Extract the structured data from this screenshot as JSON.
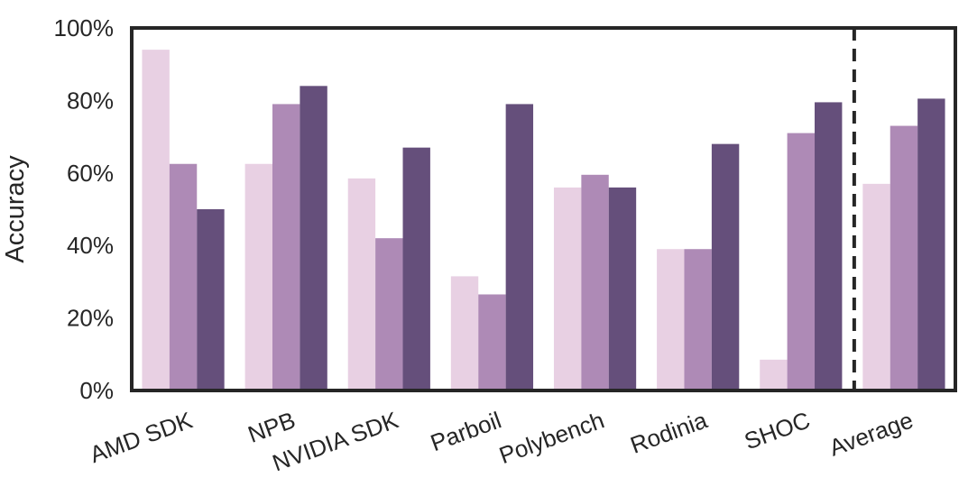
{
  "chart_data": {
    "type": "bar",
    "title": "",
    "xlabel": "",
    "ylabel": "Accuracy",
    "ylim": [
      0,
      100
    ],
    "yticks": [
      "0%",
      "20%",
      "40%",
      "60%",
      "80%",
      "100%"
    ],
    "categories": [
      "AMD SDK",
      "NPB",
      "NVIDIA SDK",
      "Parboil",
      "Polybench",
      "Rodinia",
      "SHOC",
      "Average"
    ],
    "series": [
      {
        "color": "#e8d0e3",
        "values": [
          94,
          62.5,
          58.5,
          31.5,
          56,
          39,
          8.5,
          57
        ]
      },
      {
        "color": "#ae8ab6",
        "values": [
          62.5,
          79,
          42,
          26.5,
          59.5,
          39,
          71,
          73
        ]
      },
      {
        "color": "#654f7b",
        "values": [
          50,
          84,
          67,
          79,
          56,
          68,
          79.5,
          80.5
        ]
      }
    ],
    "grid": false,
    "legend": "none",
    "separator": {
      "style": "dashed",
      "between": [
        "SHOC",
        "Average"
      ]
    }
  }
}
